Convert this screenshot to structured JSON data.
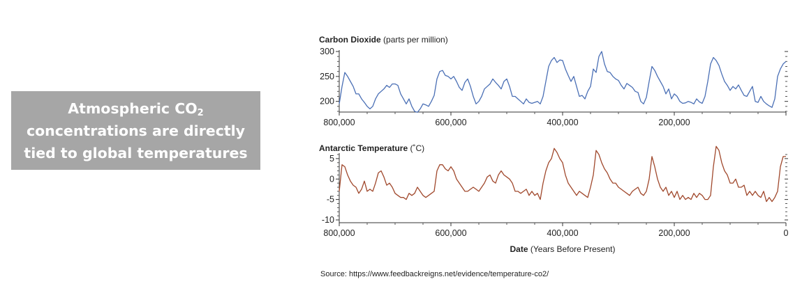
{
  "callout": {
    "line1_prefix": "Atmospheric CO",
    "line1_sub": "2",
    "line2": "concentrations are directly",
    "line3": "tied to global temperatures",
    "background": "#a6a6a6",
    "text_color": "#ffffff"
  },
  "source": "Source: https://www.feedbackreigns.net/evidence/temperature-co2/",
  "chart_data": [
    {
      "type": "line",
      "title": "Carbon Dioxide",
      "title_unit": "(parts per million)",
      "xlabel": "",
      "xlim": [
        800000,
        0
      ],
      "ylim": [
        180,
        300
      ],
      "y_ticks": [
        200,
        250,
        300
      ],
      "x_ticks": [
        800000,
        600000,
        400000,
        200000
      ],
      "x_tick_labels": [
        "800,000",
        "600,000",
        "400,000",
        "200,000"
      ],
      "grid": false,
      "color": "#4a6fb5",
      "series": [
        {
          "x": [
            800000,
            795000,
            790000,
            785000,
            780000,
            775000,
            770000,
            765000,
            760000,
            755000,
            750000,
            745000,
            740000,
            735000,
            730000,
            725000,
            720000,
            715000,
            710000,
            705000,
            700000,
            695000,
            690000,
            685000,
            680000,
            675000,
            670000,
            665000,
            660000,
            655000,
            650000,
            645000,
            640000,
            635000,
            630000,
            625000,
            620000,
            615000,
            610000,
            605000,
            600000,
            595000,
            590000,
            585000,
            580000,
            575000,
            570000,
            565000,
            560000,
            555000,
            550000,
            545000,
            540000,
            535000,
            530000,
            525000,
            520000,
            515000,
            510000,
            505000,
            500000,
            495000,
            490000,
            485000,
            480000,
            475000,
            470000,
            465000,
            460000,
            455000,
            450000,
            445000,
            440000,
            435000,
            430000,
            425000,
            420000,
            415000,
            410000,
            405000,
            400000,
            395000,
            390000,
            385000,
            380000,
            375000,
            370000,
            365000,
            360000,
            355000,
            350000,
            345000,
            340000,
            335000,
            330000,
            325000,
            320000,
            315000,
            310000,
            305000,
            300000,
            295000,
            290000,
            285000,
            280000,
            275000,
            270000,
            265000,
            260000,
            255000,
            250000,
            245000,
            240000,
            235000,
            230000,
            225000,
            220000,
            215000,
            210000,
            205000,
            200000,
            195000,
            190000,
            185000,
            180000,
            175000,
            170000,
            165000,
            160000,
            155000,
            150000,
            145000,
            140000,
            135000,
            130000,
            125000,
            120000,
            115000,
            110000,
            105000,
            100000,
            95000,
            90000,
            85000,
            80000,
            75000,
            70000,
            65000,
            60000,
            55000,
            50000,
            45000,
            40000,
            35000,
            30000,
            25000,
            20000,
            15000,
            10000,
            5000,
            0
          ],
          "values": [
            195,
            230,
            258,
            250,
            240,
            230,
            215,
            215,
            205,
            198,
            190,
            185,
            190,
            205,
            215,
            220,
            225,
            232,
            228,
            235,
            235,
            232,
            215,
            205,
            195,
            205,
            190,
            180,
            178,
            185,
            195,
            193,
            190,
            200,
            212,
            245,
            260,
            262,
            252,
            250,
            245,
            250,
            240,
            228,
            222,
            238,
            245,
            230,
            210,
            195,
            200,
            210,
            225,
            230,
            235,
            245,
            238,
            232,
            225,
            240,
            245,
            230,
            210,
            210,
            205,
            200,
            195,
            205,
            198,
            196,
            198,
            200,
            195,
            210,
            240,
            270,
            282,
            288,
            278,
            283,
            282,
            265,
            252,
            240,
            250,
            230,
            210,
            212,
            205,
            220,
            230,
            265,
            258,
            290,
            300,
            275,
            260,
            258,
            250,
            245,
            242,
            232,
            225,
            236,
            232,
            228,
            220,
            218,
            200,
            195,
            208,
            240,
            270,
            262,
            250,
            240,
            230,
            215,
            225,
            205,
            215,
            210,
            200,
            196,
            197,
            200,
            198,
            195,
            205,
            199,
            196,
            210,
            240,
            275,
            288,
            282,
            272,
            255,
            240,
            232,
            222,
            230,
            225,
            233,
            222,
            212,
            210,
            220,
            230,
            200,
            198,
            210,
            200,
            195,
            191,
            188,
            205,
            250,
            265,
            275,
            280
          ]
        }
      ]
    },
    {
      "type": "line",
      "title": "Antarctic Temperature",
      "title_unit": "(˚C)",
      "xlabel": "Date",
      "xlabel_unit": "(Years Before Present)",
      "xlim": [
        800000,
        0
      ],
      "ylim": [
        -10,
        6
      ],
      "y_ticks": [
        -10,
        -5,
        0,
        5
      ],
      "x_ticks": [
        800000,
        600000,
        400000,
        200000,
        0
      ],
      "x_tick_labels": [
        "800,000",
        "600,000",
        "400,000",
        "200,000",
        "0"
      ],
      "grid": false,
      "color": "#a0482c",
      "series": [
        {
          "x": [
            800000,
            795000,
            790000,
            785000,
            780000,
            775000,
            770000,
            765000,
            760000,
            755000,
            750000,
            745000,
            740000,
            735000,
            730000,
            725000,
            720000,
            715000,
            710000,
            705000,
            700000,
            695000,
            690000,
            685000,
            680000,
            675000,
            670000,
            665000,
            660000,
            655000,
            650000,
            645000,
            640000,
            635000,
            630000,
            625000,
            620000,
            615000,
            610000,
            605000,
            600000,
            595000,
            590000,
            585000,
            580000,
            575000,
            570000,
            565000,
            560000,
            555000,
            550000,
            545000,
            540000,
            535000,
            530000,
            525000,
            520000,
            515000,
            510000,
            505000,
            500000,
            495000,
            490000,
            485000,
            480000,
            475000,
            470000,
            465000,
            460000,
            455000,
            450000,
            445000,
            440000,
            435000,
            430000,
            425000,
            420000,
            415000,
            410000,
            405000,
            400000,
            395000,
            390000,
            385000,
            380000,
            375000,
            370000,
            365000,
            360000,
            355000,
            350000,
            345000,
            340000,
            335000,
            330000,
            325000,
            320000,
            315000,
            310000,
            305000,
            300000,
            295000,
            290000,
            285000,
            280000,
            275000,
            270000,
            265000,
            260000,
            255000,
            250000,
            245000,
            240000,
            235000,
            230000,
            225000,
            220000,
            215000,
            210000,
            205000,
            200000,
            195000,
            190000,
            185000,
            180000,
            175000,
            170000,
            165000,
            160000,
            155000,
            150000,
            145000,
            140000,
            135000,
            130000,
            125000,
            120000,
            115000,
            110000,
            105000,
            100000,
            95000,
            90000,
            85000,
            80000,
            75000,
            70000,
            65000,
            60000,
            55000,
            50000,
            45000,
            40000,
            35000,
            30000,
            25000,
            20000,
            15000,
            10000,
            5000,
            0
          ],
          "values": [
            -3,
            3.5,
            3,
            1,
            -0.5,
            -1.5,
            -2,
            -3.5,
            -2.5,
            -0.5,
            -3,
            -2.5,
            -3,
            -1,
            1.5,
            2,
            0.5,
            -1.5,
            -1,
            -2,
            -3.5,
            -4,
            -4.5,
            -4.5,
            -5,
            -3.5,
            -4,
            -3.5,
            -2,
            -3,
            -4,
            -4.5,
            -4,
            -3.5,
            -3,
            2,
            3.5,
            3.5,
            2.5,
            2,
            3,
            2,
            0,
            -1,
            -2,
            -3,
            -3,
            -2.5,
            -2,
            -2.5,
            -3,
            -2,
            -1,
            0.5,
            1,
            -0.5,
            -1,
            1,
            2,
            1,
            0.5,
            0,
            -1,
            -3,
            -3,
            -3.5,
            -3,
            -2.5,
            -4,
            -3,
            -4,
            -3.5,
            -5,
            -1,
            2,
            4,
            5,
            7.5,
            6.5,
            5,
            4,
            1,
            -1,
            -2,
            -3,
            -4,
            -3,
            -3.5,
            -4,
            -4.5,
            -2,
            1,
            7,
            6,
            4,
            2.5,
            1.5,
            0,
            -1,
            -1,
            -2,
            -2.5,
            -3,
            -3.5,
            -4,
            -3,
            -2.5,
            -2,
            -3.5,
            -4,
            -3,
            0,
            5.5,
            3,
            0,
            -2,
            -3,
            -2,
            -4,
            -3,
            -4.5,
            -3,
            -5,
            -4,
            -5,
            -4.5,
            -5,
            -3.5,
            -4.5,
            -3.5,
            -4,
            -5,
            -5,
            -4,
            3,
            8,
            7,
            4,
            2,
            1,
            -1,
            -1,
            0,
            -2,
            -2,
            -1.5,
            -4,
            -3,
            -4,
            -3,
            -4,
            -4.5,
            -3,
            -5.5,
            -4.5,
            -5.5,
            -4.5,
            -3,
            3,
            5.5,
            5.5
          ]
        }
      ]
    }
  ]
}
